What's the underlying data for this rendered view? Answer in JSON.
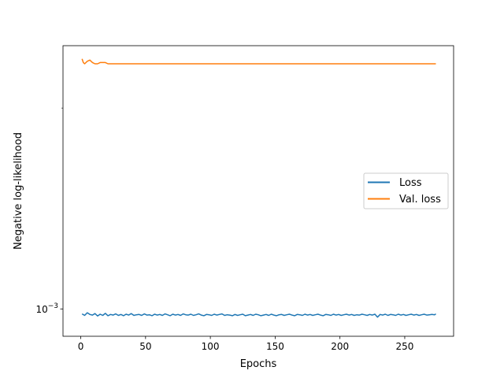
{
  "chart_data": {
    "type": "line",
    "title": "",
    "xlabel": "Epochs",
    "ylabel": "Negative log-likelihood",
    "xlim": [
      -13.7,
      287.7
    ],
    "ylim": [
      0.00091,
      0.00248
    ],
    "y_scale": "log",
    "x_ticks": [
      0,
      50,
      100,
      150,
      200,
      250
    ],
    "y_ticks": [
      {
        "value": 0.001,
        "base": "10",
        "exponent": "−3"
      }
    ],
    "grid": false,
    "legend_position": "center-right",
    "series": [
      {
        "name": "Loss",
        "color": "#1f77b4",
        "x": [
          1,
          3,
          5,
          7,
          9,
          11,
          13,
          15,
          17,
          19,
          21,
          23,
          25,
          27,
          29,
          31,
          33,
          35,
          37,
          39,
          41,
          43,
          45,
          47,
          49,
          51,
          53,
          55,
          57,
          59,
          61,
          63,
          65,
          67,
          69,
          71,
          73,
          75,
          77,
          79,
          81,
          83,
          85,
          87,
          89,
          91,
          93,
          95,
          97,
          99,
          101,
          103,
          105,
          107,
          109,
          111,
          113,
          115,
          117,
          119,
          121,
          123,
          125,
          127,
          129,
          131,
          133,
          135,
          137,
          139,
          141,
          143,
          145,
          147,
          149,
          151,
          153,
          155,
          157,
          159,
          161,
          163,
          165,
          167,
          169,
          171,
          173,
          175,
          177,
          179,
          181,
          183,
          185,
          187,
          189,
          191,
          193,
          195,
          197,
          199,
          201,
          203,
          205,
          207,
          209,
          211,
          213,
          215,
          217,
          219,
          221,
          223,
          225,
          227,
          229,
          231,
          233,
          235,
          237,
          239,
          241,
          243,
          245,
          247,
          249,
          251,
          253,
          255,
          257,
          259,
          261,
          263,
          265,
          267,
          269,
          271,
          273,
          274
        ],
        "values": [
          0.000983,
          0.000978,
          0.000987,
          0.000981,
          0.000979,
          0.000984,
          0.000976,
          0.000982,
          0.000978,
          0.000985,
          0.000977,
          0.000981,
          0.000979,
          0.000983,
          0.000978,
          0.000981,
          0.000977,
          0.000982,
          0.000979,
          0.000984,
          0.000978,
          0.00098,
          0.000981,
          0.000978,
          0.000983,
          0.000979,
          0.00098,
          0.000977,
          0.000982,
          0.000979,
          0.000981,
          0.000978,
          0.000983,
          0.00098,
          0.000977,
          0.000982,
          0.000979,
          0.000981,
          0.000978,
          0.000983,
          0.00098,
          0.000979,
          0.000982,
          0.000978,
          0.00098,
          0.000983,
          0.000979,
          0.000977,
          0.000981,
          0.00098,
          0.000978,
          0.000982,
          0.000979,
          0.000981,
          0.000983,
          0.000978,
          0.00098,
          0.000979,
          0.000977,
          0.000981,
          0.000978,
          0.00098,
          0.000982,
          0.000977,
          0.000979,
          0.000981,
          0.000978,
          0.000982,
          0.00098,
          0.000977,
          0.000979,
          0.000981,
          0.000978,
          0.000982,
          0.000979,
          0.000977,
          0.00098,
          0.000981,
          0.000978,
          0.00098,
          0.000982,
          0.000979,
          0.000977,
          0.000981,
          0.00098,
          0.000978,
          0.000982,
          0.000979,
          0.000981,
          0.000978,
          0.00098,
          0.000982,
          0.000979,
          0.000977,
          0.000981,
          0.00098,
          0.000978,
          0.000982,
          0.000979,
          0.000981,
          0.000978,
          0.00098,
          0.000982,
          0.000979,
          0.000981,
          0.000978,
          0.00098,
          0.000979,
          0.000982,
          0.00098,
          0.000978,
          0.000981,
          0.000979,
          0.000982,
          0.000972,
          0.000981,
          0.000979,
          0.000982,
          0.000978,
          0.000981,
          0.00098,
          0.000978,
          0.000982,
          0.000979,
          0.000981,
          0.000978,
          0.00098,
          0.000982,
          0.000979,
          0.000981,
          0.000978,
          0.00098,
          0.000982,
          0.000979,
          0.00098,
          0.000981,
          0.00098,
          0.000983
        ]
      },
      {
        "name": "Val. loss",
        "color": "#ff7f0e",
        "x": [
          1,
          2,
          3,
          5,
          7,
          9,
          11,
          13,
          15,
          17,
          19,
          21,
          25,
          29,
          33,
          37,
          41,
          45,
          50,
          55,
          60,
          65,
          70,
          75,
          80,
          85,
          90,
          95,
          100,
          105,
          110,
          115,
          120,
          125,
          130,
          135,
          140,
          145,
          150,
          155,
          160,
          165,
          170,
          175,
          180,
          185,
          190,
          195,
          200,
          205,
          210,
          215,
          220,
          225,
          230,
          235,
          240,
          245,
          250,
          255,
          260,
          265,
          270,
          274
        ],
        "values": [
          0.00237,
          0.00234,
          0.00233,
          0.00235,
          0.00236,
          0.00234,
          0.00233,
          0.00233,
          0.00234,
          0.00234,
          0.00234,
          0.00233,
          0.00233,
          0.00233,
          0.00233,
          0.00233,
          0.00233,
          0.00233,
          0.00233,
          0.00233,
          0.00233,
          0.00233,
          0.00233,
          0.00233,
          0.00233,
          0.00233,
          0.00233,
          0.00233,
          0.00233,
          0.00233,
          0.00233,
          0.00233,
          0.00233,
          0.00233,
          0.00233,
          0.00233,
          0.00233,
          0.00233,
          0.00233,
          0.00233,
          0.00233,
          0.00233,
          0.00233,
          0.00233,
          0.00233,
          0.00233,
          0.00233,
          0.00233,
          0.00233,
          0.00233,
          0.00233,
          0.00233,
          0.00233,
          0.00233,
          0.00233,
          0.00233,
          0.00233,
          0.00233,
          0.00233,
          0.00233,
          0.00233,
          0.00233,
          0.00233,
          0.00233
        ]
      }
    ]
  }
}
